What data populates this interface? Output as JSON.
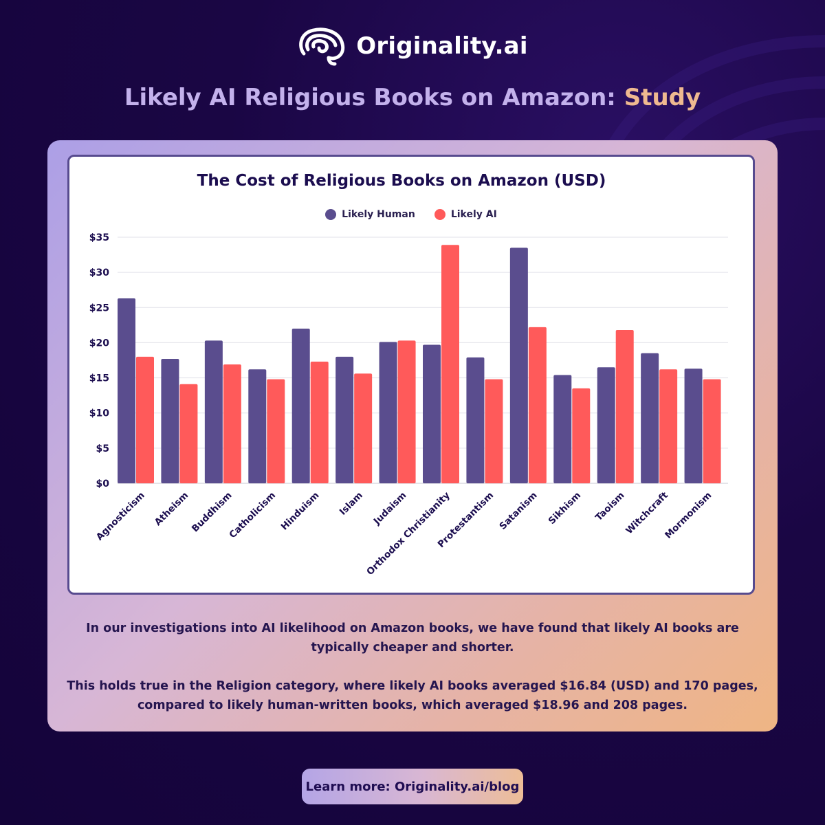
{
  "brand": {
    "name": "Originality.ai",
    "logo_icon": "brain-icon"
  },
  "headline": {
    "main": "Likely AI Religious Books on Amazon: ",
    "accent": "Study"
  },
  "colors": {
    "human": "#5a4d8e",
    "ai": "#ff5a5a",
    "title": "#1b0d4f"
  },
  "chart_data": {
    "type": "bar",
    "title": "The Cost of Religious Books on Amazon (USD)",
    "categories": [
      "Agnosticism",
      "Atheism",
      "Buddhism",
      "Catholicism",
      "Hinduism",
      "Islam",
      "Judaism",
      "Orthodox Christianity",
      "Protestantism",
      "Satanism",
      "Sikhism",
      "Taoism",
      "Witchcraft",
      "Mormonism"
    ],
    "series": [
      {
        "name": "Likely Human",
        "values": [
          26.3,
          17.7,
          20.3,
          16.2,
          22.0,
          18.0,
          20.1,
          19.7,
          17.9,
          33.5,
          15.4,
          16.5,
          18.5,
          16.3
        ]
      },
      {
        "name": "Likely AI",
        "values": [
          18.0,
          14.1,
          16.9,
          14.8,
          17.3,
          15.6,
          20.3,
          33.9,
          14.8,
          22.2,
          13.5,
          21.8,
          16.2,
          14.8
        ]
      }
    ],
    "ylim": [
      0,
      35
    ],
    "yticks": [
      0,
      5,
      10,
      15,
      20,
      25,
      30,
      35
    ],
    "ytick_labels": [
      "$0",
      "$5",
      "$10",
      "$15",
      "$20",
      "$25",
      "$30",
      "$35"
    ],
    "grid": true,
    "legend_position": "top-center"
  },
  "description": {
    "p1": "In our investigations into AI likelihood on Amazon books, we have found that likely AI books are typically cheaper and shorter.",
    "p2": "This holds true in the Religion category, where likely AI books averaged $16.84 (USD) and 170 pages, compared to likely human-written books, which averaged $18.96 and 208 pages."
  },
  "cta": {
    "label": "Learn more: Originality.ai/blog"
  }
}
